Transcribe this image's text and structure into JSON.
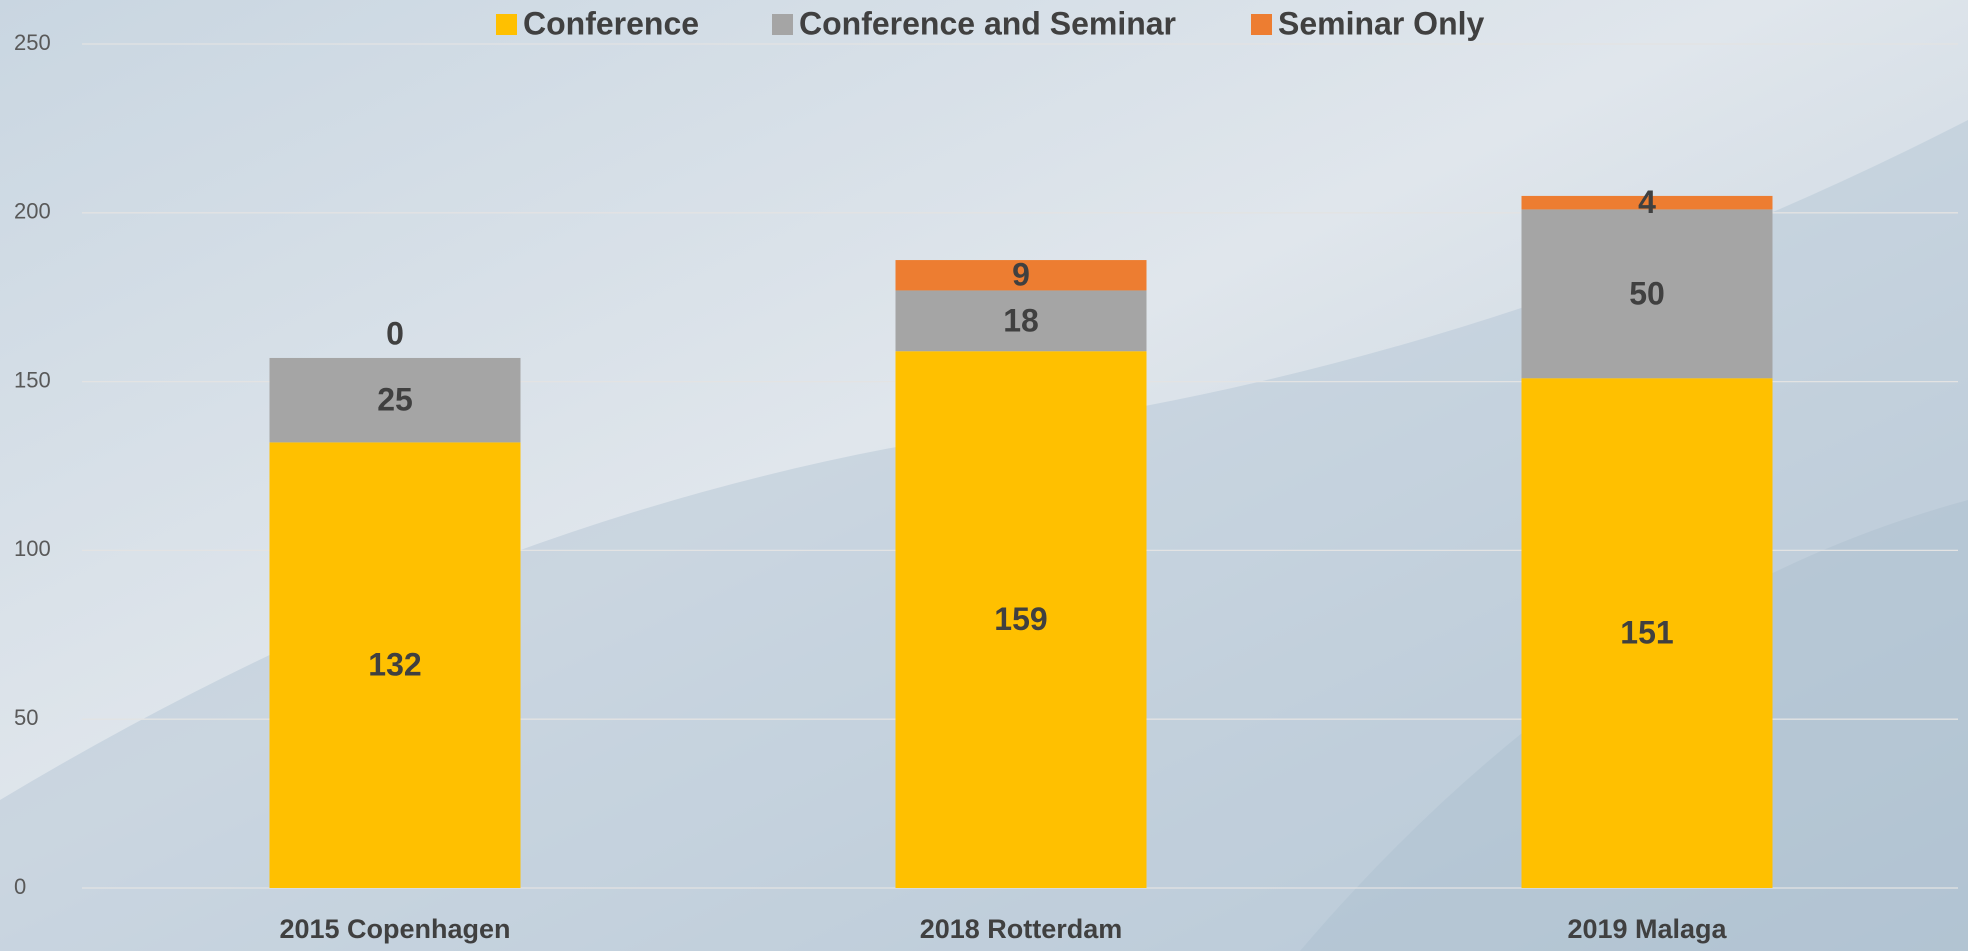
{
  "chart_data": {
    "type": "stacked_bar",
    "categories": [
      "2015 Copenhagen",
      "2018 Rotterdam",
      "2019 Malaga"
    ],
    "series": [
      {
        "name": "Conference",
        "color": "#ffc000",
        "values": [
          132,
          159,
          151
        ]
      },
      {
        "name": "Conference and Seminar",
        "color": "#a5a5a5",
        "values": [
          25,
          18,
          50
        ]
      },
      {
        "name": "Seminar Only",
        "color": "#ed7d31",
        "values": [
          0,
          9,
          4
        ]
      }
    ],
    "ylim": [
      0,
      250
    ],
    "yticks": [
      0,
      50,
      100,
      150,
      200,
      250
    ],
    "grid": true,
    "legend": "top"
  }
}
